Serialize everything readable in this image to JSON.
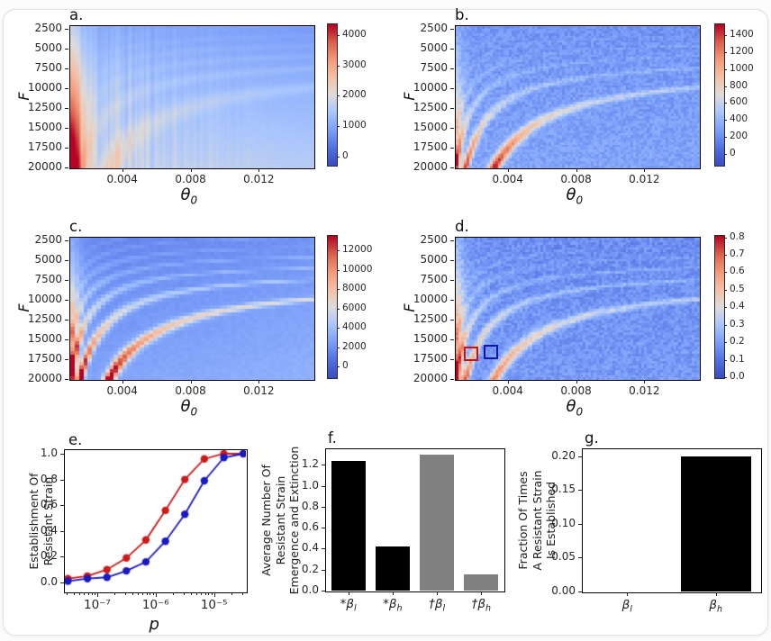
{
  "page": {
    "card_bg": "#ffffff",
    "card_border": "#e2e2e2"
  },
  "heat_axes": {
    "xlabel_theta": "θ",
    "xlabel_sub": "0",
    "ylabel": "F"
  },
  "panels": {
    "a": {
      "label": "a."
    },
    "b": {
      "label": "b."
    },
    "c": {
      "label": "c."
    },
    "d": {
      "label": "d."
    }
  },
  "panel_e": {
    "label": "e.",
    "ylabel_lines": [
      "Establishment Of",
      "Resistant Strain"
    ],
    "xlabel": "p",
    "ytick_labels": [
      "0.0",
      "0.2",
      "0.4",
      "0.6",
      "0.8",
      "1.0"
    ],
    "xtick_values": [
      1e-07,
      1e-06,
      1e-05
    ],
    "xtick_labels": [
      "10⁻⁷",
      "10⁻⁶",
      "10⁻⁵"
    ]
  },
  "panel_f": {
    "label": "f.",
    "ylabel_lines": [
      "Average Number Of",
      "Resistant Strain",
      "Emergence and Extinction"
    ],
    "ytick_labels": [
      "0.0",
      "0.2",
      "0.4",
      "0.6",
      "0.8",
      "1.0",
      "1.2"
    ]
  },
  "panel_g": {
    "label": "g.",
    "ylabel_lines": [
      "Fraction Of Times",
      "A Resistant Strain",
      "Is Established"
    ],
    "ytick_labels": [
      "0.00",
      "0.05",
      "0.10",
      "0.15",
      "0.20"
    ]
  },
  "chart_data": [
    {
      "id": "a",
      "type": "heatmap",
      "title": "a.",
      "xlabel": "θ0",
      "ylabel": "F",
      "x_range": [
        0.0009,
        0.0152
      ],
      "y_range": [
        2045,
        20000
      ],
      "xtick_values": [
        0.004,
        0.008,
        0.012
      ],
      "xtick_labels": [
        "0.004",
        "0.008",
        "0.012"
      ],
      "ytick_values": [
        2500,
        5000,
        7500,
        10000,
        12500,
        15000,
        17500,
        20000
      ],
      "ytick_labels": [
        "2500",
        "5000",
        "7500",
        "10000",
        "12500",
        "15000",
        "17500",
        "20000"
      ],
      "colormap": "coolwarm",
      "colorbar_tick_values": [
        0,
        1000,
        2000,
        3000,
        4000
      ],
      "colorbar_tick_labels": [
        "0",
        "1000",
        "2000",
        "3000",
        "4000"
      ],
      "colorbar_range": [
        -270,
        4380
      ],
      "description": "Smooth heatmap, mostly blue; values increase toward small θ0 and large F; strong red column along left edge, brightest at bottom-left, with faint arc-shaped warm bands.",
      "pattern": {
        "grid": [
          136,
          79
        ],
        "seed": 11,
        "smooth": true,
        "base": [
          0.24,
          0.17,
          0.05
        ],
        "bandAmp": 0.11,
        "bandDecay": 0.88,
        "bandFloor": 0.25,
        "bandExp": 1.3,
        "bw": [
          0.2,
          1.2
        ],
        "leftAmp": 0.58,
        "leftW": 0.05,
        "noise": 0.008,
        "colNoise": 0.14
      }
    },
    {
      "id": "b",
      "type": "heatmap",
      "title": "b.",
      "xlabel": "θ0",
      "ylabel": "F",
      "x_range": [
        0.0009,
        0.0152
      ],
      "y_range": [
        2045,
        20000
      ],
      "xtick_values": [
        0.004,
        0.008,
        0.012
      ],
      "xtick_labels": [
        "0.004",
        "0.008",
        "0.012"
      ],
      "ytick_values": [
        2500,
        5000,
        7500,
        10000,
        12500,
        15000,
        17500,
        20000
      ],
      "ytick_labels": [
        "2500",
        "5000",
        "7500",
        "10000",
        "12500",
        "15000",
        "17500",
        "20000"
      ],
      "colormap": "coolwarm",
      "colorbar_tick_values": [
        0,
        200,
        400,
        600,
        800,
        1000,
        1200,
        1400
      ],
      "colorbar_tick_labels": [
        "0",
        "200",
        "400",
        "600",
        "800",
        "1000",
        "1200",
        "1400"
      ],
      "colorbar_range": [
        -130,
        1540
      ],
      "description": "Noisy blue heatmap with nested whitish arc bands fanning from the left edge; intense red hotspot near θ0≈0.004 at F≈17500–20000 and red streaks at the lower-left.",
      "pattern": {
        "grid": [
          92,
          60
        ],
        "seed": 22,
        "smooth": false,
        "base": [
          0.22,
          0.05,
          0.0
        ],
        "bandAmp": 0.62,
        "bandDecay": 0.72,
        "bandFloor": 0.12,
        "bandExp": 2.1,
        "bw": [
          0.09,
          0.55
        ],
        "leftAmp": 0.34,
        "leftW": 0.03,
        "noise": 0.05,
        "colNoise": 0
      }
    },
    {
      "id": "c",
      "type": "heatmap",
      "title": "c.",
      "xlabel": "θ0",
      "ylabel": "F",
      "x_range": [
        0.0009,
        0.0152
      ],
      "y_range": [
        2045,
        20000
      ],
      "xtick_values": [
        0.004,
        0.008,
        0.012
      ],
      "xtick_labels": [
        "0.004",
        "0.008",
        "0.012"
      ],
      "ytick_values": [
        2500,
        5000,
        7500,
        10000,
        12500,
        15000,
        17500,
        20000
      ],
      "ytick_labels": [
        "2500",
        "5000",
        "7500",
        "10000",
        "12500",
        "15000",
        "17500",
        "20000"
      ],
      "colormap": "coolwarm",
      "colorbar_tick_values": [
        0,
        2000,
        4000,
        6000,
        8000,
        10000,
        12000
      ],
      "colorbar_tick_labels": [
        "0",
        "2000",
        "4000",
        "6000",
        "8000",
        "10000",
        "12000"
      ],
      "colorbar_range": [
        -1100,
        13600
      ],
      "description": "Blocky smooth heatmap with sharp nested arc bands; main dark-red band sweeps from θ0≈0.004 at F≈20000 up to F≈10000 at the right edge; scalloped band fan in the top-left corner.",
      "pattern": {
        "grid": [
          56,
          40
        ],
        "seed": 33,
        "smooth": false,
        "base": [
          0.22,
          0.09,
          -0.05
        ],
        "bandAmp": 0.72,
        "bandDecay": 0.82,
        "bandFloor": 0.14,
        "bandExp": 1.8,
        "bw": [
          0.09,
          0.6
        ],
        "leftAmp": 0.4,
        "leftW": 0.04,
        "noise": 0.012,
        "colNoise": 0
      }
    },
    {
      "id": "d",
      "type": "heatmap",
      "title": "d.",
      "xlabel": "θ0",
      "ylabel": "F",
      "x_range": [
        0.0009,
        0.0152
      ],
      "y_range": [
        2045,
        20000
      ],
      "xtick_values": [
        0.004,
        0.008,
        0.012
      ],
      "xtick_labels": [
        "0.004",
        "0.008",
        "0.012"
      ],
      "ytick_values": [
        2500,
        5000,
        7500,
        10000,
        12500,
        15000,
        17500,
        20000
      ],
      "ytick_labels": [
        "2500",
        "5000",
        "7500",
        "10000",
        "12500",
        "15000",
        "17500",
        "20000"
      ],
      "colormap": "coolwarm",
      "colorbar_tick_values": [
        0.0,
        0.1,
        0.2,
        0.3,
        0.4,
        0.5,
        0.6,
        0.7,
        0.8
      ],
      "colorbar_tick_labels": [
        "0.0",
        "0.1",
        "0.2",
        "0.3",
        "0.4",
        "0.5",
        "0.6",
        "0.7",
        "0.8"
      ],
      "colorbar_range": [
        0,
        0.813
      ],
      "description": "Noisy blue heatmap (fraction 0–0.8) with faint warm arc bands and red speckled streaks along the left edge; red and blue square outlines mark two parameter boxes near θ0≈0.002–0.003, F≈17000.",
      "annotations": [
        {
          "shape": "rect",
          "color": "#cc1111",
          "x0": 0.037,
          "y0": 0.772,
          "x1": 0.096,
          "y1": 0.873
        },
        {
          "shape": "rect",
          "color": "#1111bb",
          "x0": 0.118,
          "y0": 0.759,
          "x1": 0.177,
          "y1": 0.861
        }
      ],
      "pattern": {
        "grid": [
          92,
          60
        ],
        "seed": 44,
        "smooth": false,
        "base": [
          0.2,
          0.04,
          0.0
        ],
        "bandAmp": 0.48,
        "bandDecay": 0.78,
        "bandFloor": 0.18,
        "bandExp": 1.5,
        "bw": [
          0.09,
          0.55
        ],
        "leftAmp": 0.52,
        "leftW": 0.035,
        "noise": 0.055,
        "colNoise": 0
      }
    },
    {
      "id": "e",
      "type": "line",
      "title": "e.",
      "xlabel": "p",
      "ylabel": "Establishment Of Resistant Strain",
      "xscale": "log",
      "xlim": [
        2.8e-08,
        3.5e-05
      ],
      "ylim": [
        -0.07,
        1.028
      ],
      "ytick_values": [
        0.0,
        0.2,
        0.4,
        0.6,
        0.8,
        1.0
      ],
      "x": [
        3.16e-08,
        6.81e-08,
        1.47e-07,
        3.16e-07,
        6.81e-07,
        1.47e-06,
        3.16e-06,
        6.81e-06,
        1.47e-05,
        3.16e-05
      ],
      "series": [
        {
          "name": "red",
          "color": "#cf1a1a",
          "values": [
            0.03,
            0.05,
            0.1,
            0.19,
            0.33,
            0.56,
            0.8,
            0.96,
            1.0,
            1.0
          ]
        },
        {
          "name": "blue",
          "color": "#1a1ac4",
          "values": [
            0.01,
            0.03,
            0.04,
            0.09,
            0.16,
            0.32,
            0.53,
            0.79,
            0.97,
            1.0
          ]
        }
      ]
    },
    {
      "id": "f",
      "type": "bar",
      "title": "f.",
      "ylabel": "Average Number Of Resistant Strain Emergence and Extinction",
      "categories": [
        {
          "prefix": "*",
          "base": "β",
          "sub": "l"
        },
        {
          "prefix": "*",
          "base": "β",
          "sub": "h"
        },
        {
          "prefix": "†",
          "base": "β",
          "sub": "l"
        },
        {
          "prefix": "†",
          "base": "β",
          "sub": "h"
        }
      ],
      "values": [
        1.24,
        0.42,
        1.3,
        0.155
      ],
      "colors": [
        "#000000",
        "#000000",
        "#808080",
        "#808080"
      ],
      "ylim": [
        0,
        1.35
      ],
      "ytick_values": [
        0.0,
        0.2,
        0.4,
        0.6,
        0.8,
        1.0,
        1.2
      ]
    },
    {
      "id": "g",
      "type": "bar",
      "title": "g.",
      "ylabel": "Fraction Of Times A Resistant Strain Is Established",
      "categories": [
        {
          "prefix": "",
          "base": "β",
          "sub": "l"
        },
        {
          "prefix": "",
          "base": "β",
          "sub": "h"
        }
      ],
      "values": [
        0.0,
        0.2
      ],
      "colors": [
        "#000000",
        "#000000"
      ],
      "ylim": [
        0,
        0.21
      ],
      "ytick_values": [
        0.0,
        0.05,
        0.1,
        0.15,
        0.2
      ]
    }
  ]
}
